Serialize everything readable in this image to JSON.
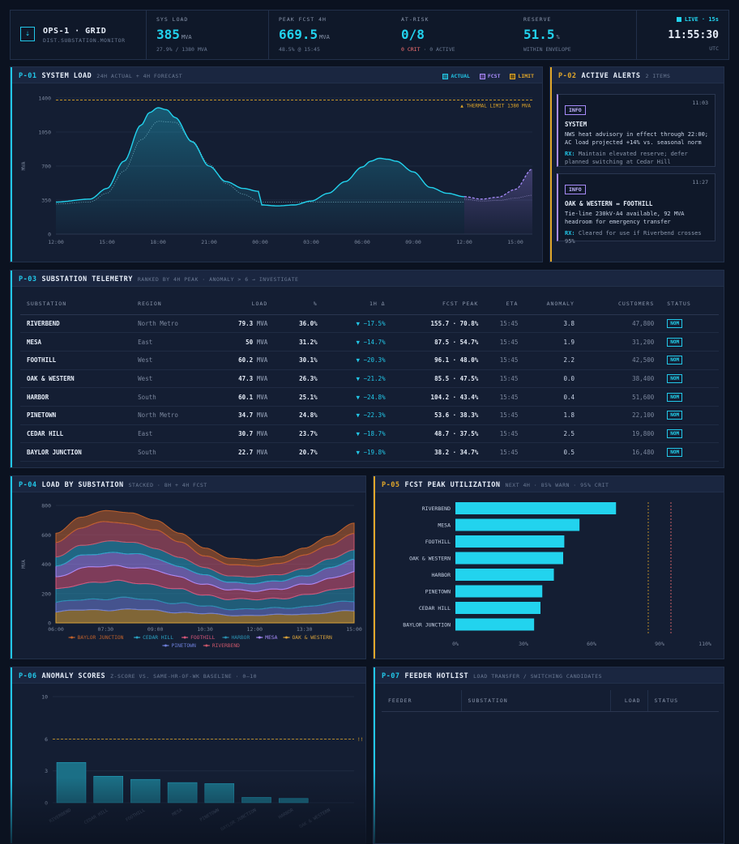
{
  "header": {
    "brand_title": "OPS-1 · GRID",
    "brand_sub": "DIST.SUBSTATION.MONITOR",
    "kpis": [
      {
        "label": "SYS LOAD",
        "value": "385",
        "unit": "MVA",
        "sub": "27.9% / 1380 MVA"
      },
      {
        "label": "PEAK FCST 4H",
        "value": "669.5",
        "unit": "MVA",
        "sub": "48.5% @ 15:45"
      },
      {
        "label": "AT-RISK",
        "value": "0/8",
        "unit": "",
        "sub_crit": "0 CRIT",
        "sub": " · 0 ACTIVE"
      },
      {
        "label": "RESERVE",
        "value": "51.5",
        "unit": "%",
        "sub": "WITHIN ENVELOPE"
      }
    ],
    "live": "LIVE · 15s",
    "time": "11:55:30",
    "tz": "UTC"
  },
  "p01": {
    "id": "P-01",
    "title": "SYSTEM LOAD",
    "sub": "24H ACTUAL + 4H FORECAST",
    "legend": [
      {
        "label": "ACTUAL",
        "color": "#22c7e8"
      },
      {
        "label": "FCST",
        "color": "#a78bfa"
      },
      {
        "label": "LIMIT",
        "color": "#e0a62a"
      }
    ],
    "limit_label": "▲ THERMAL LIMIT 1380 MVA"
  },
  "p02": {
    "id": "P-02",
    "title": "ACTIVE ALERTS",
    "sub": "2 ITEMS",
    "alerts": [
      {
        "badge": "INFO",
        "time": "11:03",
        "head": "SYSTEM",
        "body": "NWS heat advisory in effect through 22:00; AC load projected +14% vs. seasonal norm",
        "rx_label": "RX:",
        "rx": " Maintain elevated reserve; defer planned switching at Cedar Hill"
      },
      {
        "badge": "INFO",
        "time": "11:27",
        "head": "OAK & WESTERN ↔ FOOTHILL",
        "body": "Tie-line 230kV-A4 available, 92 MVA headroom for emergency transfer",
        "rx_label": "RX:",
        "rx": " Cleared for use if Riverbend crosses 95%"
      }
    ]
  },
  "p03": {
    "id": "P-03",
    "title": "SUBSTATION TELEMETRY",
    "sub": "RANKED BY 4H PEAK · ANOMALY > 6 → INVESTIGATE",
    "columns": [
      "SUBSTATION",
      "REGION",
      "LOAD",
      "%",
      "1H Δ",
      "FCST PEAK",
      "ETA",
      "ANOMALY",
      "CUSTOMERS",
      "STATUS"
    ],
    "rows": [
      {
        "name": "RIVERBEND",
        "region": "North Metro",
        "load": "79.3",
        "unit": "MVA",
        "pct": "36.0%",
        "delta": "▼ −17.5%",
        "peak": "155.7 · 70.8%",
        "eta": "15:45",
        "anomaly": "3.8",
        "customers": "47,800",
        "status": "NOM"
      },
      {
        "name": "MESA",
        "region": "East",
        "load": "50",
        "unit": "MVA",
        "pct": "31.2%",
        "delta": "▼ −14.7%",
        "peak": "87.5 · 54.7%",
        "eta": "15:45",
        "anomaly": "1.9",
        "customers": "31,200",
        "status": "NOM"
      },
      {
        "name": "FOOTHILL",
        "region": "West",
        "load": "60.2",
        "unit": "MVA",
        "pct": "30.1%",
        "delta": "▼ −20.3%",
        "peak": "96.1 · 48.0%",
        "eta": "15:45",
        "anomaly": "2.2",
        "customers": "42,500",
        "status": "NOM"
      },
      {
        "name": "OAK & WESTERN",
        "region": "West",
        "load": "47.3",
        "unit": "MVA",
        "pct": "26.3%",
        "delta": "▼ −21.2%",
        "peak": "85.5 · 47.5%",
        "eta": "15:45",
        "anomaly": "0.0",
        "customers": "38,400",
        "status": "NOM"
      },
      {
        "name": "HARBOR",
        "region": "South",
        "load": "60.1",
        "unit": "MVA",
        "pct": "25.1%",
        "delta": "▼ −24.8%",
        "peak": "104.2 · 43.4%",
        "eta": "15:45",
        "anomaly": "0.4",
        "customers": "51,600",
        "status": "NOM"
      },
      {
        "name": "PINETOWN",
        "region": "North Metro",
        "load": "34.7",
        "unit": "MVA",
        "pct": "24.8%",
        "delta": "▼ −22.3%",
        "peak": "53.6 · 38.3%",
        "eta": "15:45",
        "anomaly": "1.8",
        "customers": "22,100",
        "status": "NOM"
      },
      {
        "name": "CEDAR HILL",
        "region": "East",
        "load": "30.7",
        "unit": "MVA",
        "pct": "23.7%",
        "delta": "▼ −18.7%",
        "peak": "48.7 · 37.5%",
        "eta": "15:45",
        "anomaly": "2.5",
        "customers": "19,800",
        "status": "NOM"
      },
      {
        "name": "BAYLOR JUNCTION",
        "region": "South",
        "load": "22.7",
        "unit": "MVA",
        "pct": "20.7%",
        "delta": "▼ −19.8%",
        "peak": "38.2 · 34.7%",
        "eta": "15:45",
        "anomaly": "0.5",
        "customers": "16,480",
        "status": "NOM"
      }
    ]
  },
  "p04": {
    "id": "P-04",
    "title": "LOAD BY SUBSTATION",
    "sub": "STACKED · 8H + 4H FCST"
  },
  "p05": {
    "id": "P-05",
    "title": "FCST PEAK UTILIZATION",
    "sub": "NEXT 4H · 85% WARN · 95% CRIT"
  },
  "p06": {
    "id": "P-06",
    "title": "ANOMALY SCORES",
    "sub": "Z-SCORE VS. SAME-HR-OF-WK BASELINE · 0–10"
  },
  "p07": {
    "id": "P-07",
    "title": "FEEDER HOTLIST",
    "sub": "LOAD TRANSFER / SWITCHING CANDIDATES",
    "columns": [
      "FEEDER",
      "SUBSTATION",
      "LOAD",
      "STATUS"
    ]
  },
  "chart_data": [
    {
      "id": "system-load",
      "type": "line",
      "ylabel": "MVA",
      "ylim": [
        0,
        1400
      ],
      "y_ticks": [
        0,
        350,
        700,
        1050,
        1400
      ],
      "x_ticks": [
        "12:00",
        "15:00",
        "18:00",
        "21:00",
        "00:00",
        "03:00",
        "06:00",
        "09:00",
        "12:00",
        "15:00"
      ],
      "limit": 1380,
      "series": [
        {
          "name": "ACTUAL",
          "hours": [
            0,
            2,
            3,
            4,
            5,
            5.5,
            6,
            6.5,
            7,
            8,
            9,
            10,
            11,
            11.9,
            12.1,
            13,
            14,
            15,
            16,
            17,
            18,
            18.5,
            19,
            19.5,
            20,
            21,
            22,
            23,
            24
          ],
          "values": [
            330,
            360,
            470,
            750,
            1120,
            1250,
            1300,
            1280,
            1200,
            950,
            700,
            540,
            470,
            440,
            300,
            290,
            300,
            340,
            420,
            540,
            690,
            750,
            780,
            770,
            750,
            640,
            480,
            420,
            385
          ]
        },
        {
          "name": "baseline",
          "hours": [
            0,
            2,
            3,
            4,
            5,
            6,
            7,
            8,
            9,
            10,
            11,
            12,
            24
          ],
          "values": [
            310,
            330,
            420,
            650,
            970,
            1160,
            1150,
            960,
            720,
            520,
            410,
            330,
            330
          ]
        },
        {
          "name": "FCST",
          "hours": [
            24,
            25,
            26,
            27,
            28
          ],
          "values": [
            385,
            360,
            380,
            460,
            670
          ]
        }
      ]
    },
    {
      "id": "load-by-substation",
      "type": "area",
      "ylabel": "MVA",
      "ylim": [
        0,
        800
      ],
      "y_ticks": [
        0,
        200,
        400,
        600,
        800
      ],
      "x_ticks": [
        "06:00",
        "07:30",
        "09:00",
        "10:30",
        "12:00",
        "13:30",
        "15:00"
      ],
      "legend": [
        "BAYLOR JUNCTION",
        "CEDAR HILL",
        "FOOTHILL",
        "HARBOR",
        "MESA",
        "OAK & WESTERN",
        "PINETOWN",
        "RIVERBEND"
      ],
      "colors": [
        "#c0612b",
        "#2aa3c4",
        "#d6567a",
        "#2a8fb0",
        "#a78bfa",
        "#d9a23a",
        "#6d7fd9",
        "#c9566a"
      ],
      "stack_order": [
        "OAK & WESTERN",
        "PINETOWN",
        "HARBOR",
        "FOOTHILL",
        "MESA",
        "CEDAR HILL",
        "RIVERBEND",
        "BAYLOR JUNCTION"
      ],
      "hours": [
        0,
        1,
        2,
        3,
        4,
        5,
        6,
        7,
        8,
        9,
        10,
        11,
        12
      ],
      "totals": [
        610,
        720,
        765,
        750,
        700,
        610,
        510,
        440,
        430,
        450,
        510,
        590,
        680
      ]
    },
    {
      "id": "fcst-peak-utilization",
      "type": "bar",
      "orientation": "horizontal",
      "categories": [
        "RIVERBEND",
        "MESA",
        "FOOTHILL",
        "OAK & WESTERN",
        "HARBOR",
        "PINETOWN",
        "CEDAR HILL",
        "BAYLOR JUNCTION"
      ],
      "values": [
        70.8,
        54.7,
        48.0,
        47.5,
        43.4,
        38.3,
        37.5,
        34.7
      ],
      "xlim": [
        0,
        110
      ],
      "x_ticks": [
        "0%",
        "30%",
        "60%",
        "90%",
        "110%"
      ],
      "warn": 85,
      "crit": 95
    },
    {
      "id": "anomaly-scores",
      "type": "bar",
      "ylim": [
        0,
        10
      ],
      "y_ticks": [
        0,
        3,
        6,
        10
      ],
      "threshold": 6,
      "threshold_label": "!!",
      "categories": [
        "RIVERBEND",
        "CEDAR HILL",
        "FOOTHILL",
        "MESA",
        "PINETOWN",
        "BAYLOR JUNCTION",
        "HARBOR",
        "OAK & WESTERN"
      ],
      "values": [
        3.8,
        2.5,
        2.2,
        1.9,
        1.8,
        0.5,
        0.4,
        0.0
      ]
    }
  ]
}
